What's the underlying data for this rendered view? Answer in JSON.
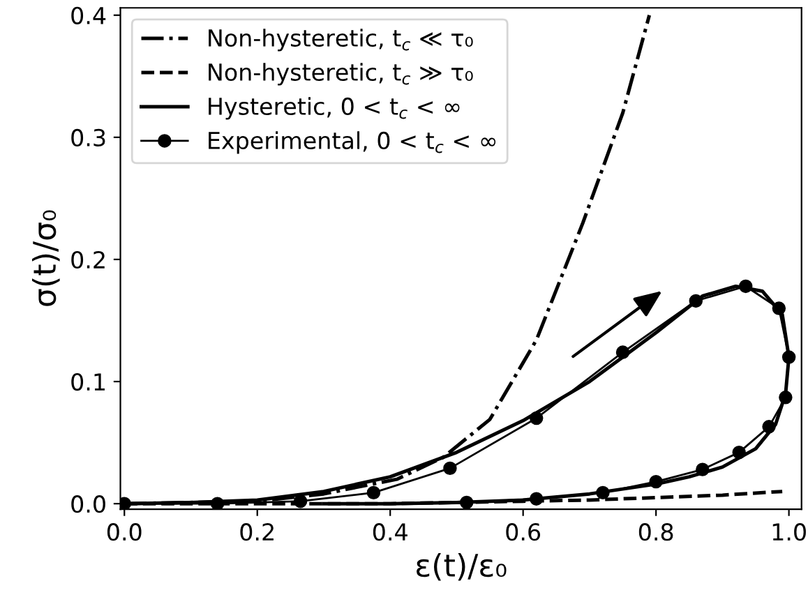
{
  "chart_data": {
    "type": "line",
    "xlabel": "ε(t)/ε₀",
    "ylabel": "σ(t)/σ₀",
    "xlim": [
      -0.006,
      1.019
    ],
    "ylim": [
      -0.0045,
      0.406
    ],
    "xticks": [
      {
        "value": 0,
        "label": "0.0"
      },
      0.2,
      0.4,
      0.6,
      0.8,
      {
        "value": 1,
        "label": "1.0"
      }
    ],
    "yticks": [
      {
        "value": 0,
        "label": "0.0"
      },
      0.1,
      0.2,
      0.3,
      0.4
    ],
    "grid": false,
    "legend": "top left",
    "series": [
      {
        "name": "Non-hysteretic, t$_{c}$ ≪ τ₀",
        "color": "#000000",
        "line_style": "dashdot",
        "marker": "none",
        "x": [
          0,
          0.2,
          0.3,
          0.41,
          0.48,
          0.55,
          0.62,
          0.69,
          0.75,
          0.79
        ],
        "values": [
          0,
          0.002,
          0.008,
          0.02,
          0.038,
          0.069,
          0.134,
          0.23,
          0.32,
          0.4
        ]
      },
      {
        "name": "Non-hysteretic, t$_{c}$ ≫ τ₀",
        "color": "#000000",
        "line_style": "dashed",
        "marker": "none",
        "x": [
          0,
          0.2,
          0.4,
          0.5,
          0.6,
          0.7,
          0.8,
          0.9,
          0.99
        ],
        "values": [
          0,
          0,
          0,
          0.001,
          0.002,
          0.003,
          0.005,
          0.007,
          0.01
        ]
      },
      {
        "name": "Hysteretic, 0 < t$_{c}$ < ∞",
        "color": "#000000",
        "line_style": "solid",
        "marker": "none",
        "x": [
          0,
          0.1,
          0.2,
          0.3,
          0.4,
          0.5,
          0.6,
          0.7,
          0.8,
          0.87,
          0.92,
          0.96,
          0.99,
          1.0,
          0.995,
          0.98,
          0.95,
          0.9,
          0.85,
          0.8,
          0.7,
          0.6,
          0.5,
          0.4,
          0.3
        ],
        "values": [
          0,
          0.001,
          0.003,
          0.01,
          0.022,
          0.042,
          0.068,
          0.1,
          0.14,
          0.17,
          0.178,
          0.174,
          0.155,
          0.12,
          0.09,
          0.065,
          0.045,
          0.03,
          0.022,
          0.016,
          0.008,
          0.003,
          0.001,
          0,
          0
        ]
      },
      {
        "name": "Experimental, 0 < t$_{c}$ < ∞",
        "color": "#000000",
        "line_style": "solid",
        "marker": "circle",
        "x": [
          0,
          0.14,
          0.265,
          0.375,
          0.49,
          0.62,
          0.75,
          0.86,
          0.935,
          0.985,
          1.0,
          0.995,
          0.97,
          0.925,
          0.87,
          0.8,
          0.72,
          0.62,
          0.515
        ],
        "values": [
          0,
          0,
          0.002,
          0.009,
          0.029,
          0.07,
          0.124,
          0.166,
          0.178,
          0.16,
          0.12,
          0.087,
          0.063,
          0.042,
          0.028,
          0.018,
          0.009,
          0.004,
          0.001
        ]
      }
    ]
  }
}
